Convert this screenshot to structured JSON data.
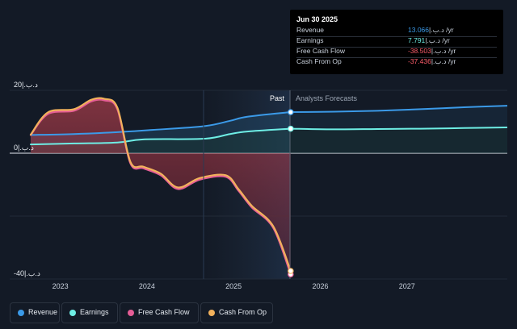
{
  "tooltip": {
    "date": "Jun 30 2025",
    "rows": [
      {
        "label": "Revenue",
        "value": "13.066",
        "unit": "|.د.ب /yr",
        "color": "#3b9ae8"
      },
      {
        "label": "Earnings",
        "value": "7.791",
        "unit": "|.د.ب /yr",
        "color": "#6eeee5"
      },
      {
        "label": "Free Cash Flow",
        "value": "-38.503",
        "unit": "|.د.ب /yr",
        "color": "#ff5d6b"
      },
      {
        "label": "Cash From Op",
        "value": "-37.436",
        "unit": "|.د.ب /yr",
        "color": "#ff5d6b"
      }
    ]
  },
  "legend": [
    {
      "label": "Revenue",
      "color": "#3b9ae8"
    },
    {
      "label": "Earnings",
      "color": "#6eeee5"
    },
    {
      "label": "Free Cash Flow",
      "color": "#e55d96"
    },
    {
      "label": "Cash From Op",
      "color": "#f2b15c"
    }
  ],
  "chart_data": {
    "type": "line",
    "y_unit": "|.د.ب",
    "ylim": [
      -40,
      20
    ],
    "y_tick_labels": [
      "20|.د.ب",
      "0|.د.ب",
      "-40|.د.ب"
    ],
    "x_tick_labels": [
      "2023",
      "2024",
      "2025",
      "2026",
      "2027"
    ],
    "past_label": "Past",
    "forecast_label": "Analysts Forecasts",
    "series": [
      {
        "name": "Revenue",
        "color": "#3b9ae8",
        "past": [
          [
            2022.5,
            5.8
          ],
          [
            2023.0,
            6.1
          ],
          [
            2023.5,
            6.7
          ],
          [
            2023.9,
            7.4
          ],
          [
            2024.5,
            8.6
          ],
          [
            2024.8,
            10.3
          ],
          [
            2025.0,
            11.6
          ],
          [
            2025.5,
            13.066
          ]
        ],
        "forecast": [
          [
            2025.5,
            13.066
          ],
          [
            2026.0,
            13.2
          ],
          [
            2026.5,
            13.5
          ],
          [
            2027.0,
            14.0
          ],
          [
            2027.5,
            14.6
          ],
          [
            2028.0,
            15.1
          ]
        ]
      },
      {
        "name": "Earnings",
        "color": "#6eeee5",
        "past": [
          [
            2022.5,
            2.8
          ],
          [
            2023.0,
            3.1
          ],
          [
            2023.5,
            3.4
          ],
          [
            2023.8,
            4.4
          ],
          [
            2024.5,
            4.6
          ],
          [
            2024.8,
            6.1
          ],
          [
            2025.0,
            6.9
          ],
          [
            2025.5,
            7.791
          ]
        ],
        "forecast": [
          [
            2025.5,
            7.791
          ],
          [
            2026.0,
            7.6
          ],
          [
            2026.5,
            7.7
          ],
          [
            2027.0,
            7.8
          ],
          [
            2027.5,
            8.0
          ],
          [
            2028.0,
            8.2
          ]
        ]
      },
      {
        "name": "Free Cash Flow",
        "color": "#e55d96",
        "past": [
          [
            2022.5,
            5.8
          ],
          [
            2022.7,
            12.5
          ],
          [
            2023.0,
            13.5
          ],
          [
            2023.2,
            16.5
          ],
          [
            2023.35,
            16.8
          ],
          [
            2023.5,
            14.0
          ],
          [
            2023.65,
            -3.2
          ],
          [
            2023.8,
            -4.8
          ],
          [
            2024.0,
            -7.0
          ],
          [
            2024.2,
            -11.4
          ],
          [
            2024.45,
            -8.4
          ],
          [
            2024.75,
            -7.5
          ],
          [
            2024.9,
            -12.0
          ],
          [
            2025.05,
            -17.2
          ],
          [
            2025.3,
            -23.8
          ],
          [
            2025.5,
            -38.503
          ]
        ]
      },
      {
        "name": "Cash From Op",
        "color": "#f2b15c",
        "past": [
          [
            2022.5,
            5.9
          ],
          [
            2022.7,
            13.0
          ],
          [
            2023.0,
            14.0
          ],
          [
            2023.2,
            17.0
          ],
          [
            2023.35,
            17.3
          ],
          [
            2023.5,
            14.5
          ],
          [
            2023.65,
            -2.7
          ],
          [
            2023.8,
            -4.3
          ],
          [
            2024.0,
            -6.5
          ],
          [
            2024.2,
            -10.9
          ],
          [
            2024.45,
            -7.9
          ],
          [
            2024.75,
            -7.0
          ],
          [
            2024.9,
            -11.5
          ],
          [
            2025.05,
            -16.7
          ],
          [
            2025.3,
            -23.3
          ],
          [
            2025.5,
            -37.436
          ]
        ]
      }
    ]
  }
}
